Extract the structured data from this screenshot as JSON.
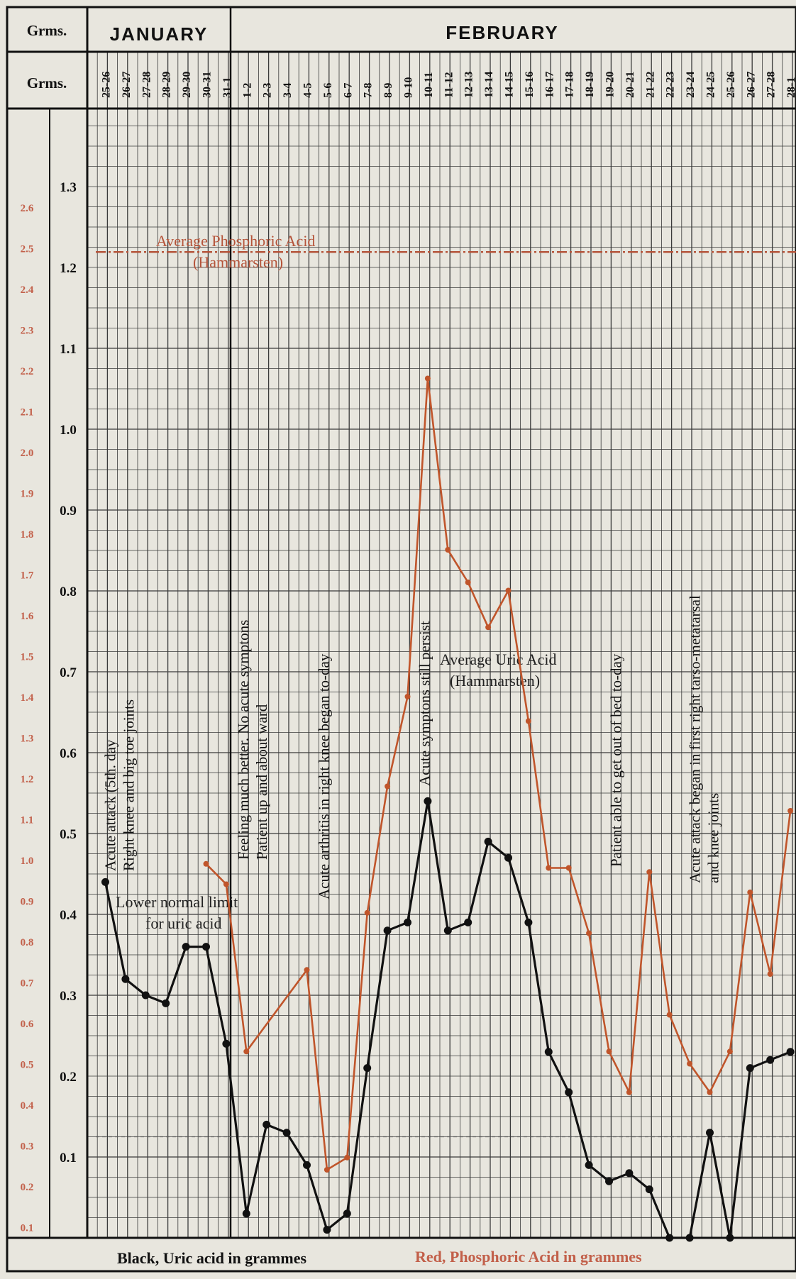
{
  "header": {
    "corner_label": "Grms.",
    "left_axis_header": "Grms.",
    "months": [
      {
        "name": "JANUARY"
      },
      {
        "name": "FEBRUARY"
      }
    ]
  },
  "footer": {
    "black_legend": "Black, Uric acid in grammes",
    "red_legend": "Red, Phosphoric Acid in grammes"
  },
  "chart_data": {
    "type": "line",
    "categories": [
      "25-26",
      "26-27",
      "27-28",
      "28-29",
      "29-30",
      "30-31",
      "31-1",
      "1-2",
      "2-3",
      "3-4",
      "4-5",
      "5-6",
      "6-7",
      "7-8",
      "8-9",
      "9-10",
      "10-11",
      "11-12",
      "12-13",
      "13-14",
      "14-15",
      "15-16",
      "16-17",
      "17-18",
      "18-19",
      "19-20",
      "20-21",
      "21-22",
      "22-23",
      "23-24",
      "24-25",
      "25-26",
      "26-27",
      "27-28",
      "28-1"
    ],
    "ylim": [
      0,
      1.38
    ],
    "uric_axis": {
      "ticks": [
        0.1,
        0.2,
        0.3,
        0.4,
        0.5,
        0.6,
        0.7,
        0.8,
        0.9,
        1.0,
        1.1,
        1.2,
        1.3
      ],
      "tick_labels": [
        "0.1",
        "0.2",
        "0.3",
        "0.4",
        "0.5",
        "0.6",
        "0.7",
        "0.8",
        "0.9",
        "1.0",
        "1.1",
        "1.2",
        "1.3"
      ]
    },
    "phosphoric_axis": {
      "ticks": [
        0.1,
        0.2,
        0.3,
        0.4,
        0.5,
        0.6,
        0.7,
        0.8,
        0.9,
        1.0,
        1.1,
        1.2,
        1.3,
        1.4,
        1.5,
        1.6,
        1.7,
        1.8,
        1.9,
        2.0,
        2.1,
        2.2,
        2.3,
        2.4,
        2.5,
        2.6
      ],
      "tick_labels": [
        "0.1",
        "0.2",
        "0.3",
        "0.4",
        "0.5",
        "0.6",
        "0.7",
        "0.8",
        "0.9",
        "1.0",
        "1.1",
        "1.2",
        "1.3",
        "1.4",
        "1.5",
        "1.6",
        "1.7",
        "1.8",
        "1.9",
        "2.0",
        "2.1",
        "2.2",
        "2.3",
        "2.4",
        "2.5",
        "2.6"
      ]
    },
    "series": [
      {
        "name": "Black, Uric acid in grammes",
        "color": "#111111",
        "axis": "uric",
        "values": [
          0.44,
          0.32,
          0.3,
          0.29,
          0.36,
          0.36,
          0.24,
          0.03,
          0.14,
          0.13,
          0.09,
          0.01,
          0.03,
          0.21,
          0.38,
          0.39,
          0.54,
          0.38,
          0.39,
          0.49,
          0.47,
          0.39,
          0.23,
          0.18,
          0.09,
          0.07,
          0.08,
          0.06,
          0.0,
          0.0,
          0.13,
          0.0,
          0.21,
          0.22,
          0.23
        ]
      },
      {
        "name": "Red, Phosphoric Acid in grammes",
        "color": "#c0552b",
        "axis": "phosphoric",
        "points": [
          [
            5,
            0.99
          ],
          [
            6,
            0.94
          ],
          [
            7,
            0.53
          ],
          [
            10,
            0.73
          ],
          [
            11,
            0.24
          ],
          [
            12,
            0.27
          ],
          [
            13,
            0.87
          ],
          [
            14,
            1.18
          ],
          [
            15,
            1.4
          ],
          [
            16,
            2.18
          ],
          [
            17,
            1.76
          ],
          [
            18,
            1.68
          ],
          [
            19,
            1.57
          ],
          [
            20,
            1.66
          ],
          [
            21,
            1.34
          ],
          [
            22,
            0.98
          ],
          [
            23,
            0.98
          ],
          [
            24,
            0.82
          ],
          [
            25,
            0.53
          ],
          [
            26,
            0.43
          ],
          [
            27,
            0.97
          ],
          [
            28,
            0.62
          ],
          [
            29,
            0.5
          ],
          [
            30,
            0.43
          ],
          [
            31,
            0.53
          ],
          [
            32,
            0.92
          ],
          [
            33,
            0.72
          ],
          [
            34,
            1.12
          ]
        ]
      }
    ],
    "reference_lines": [
      {
        "name": "phosphoric-average",
        "axis": "phosphoric",
        "value": 2.49,
        "color": "#b5543a",
        "label": "Average Phosphoric Acid",
        "sublabel": "(Hammarsten)"
      },
      {
        "name": "uric-average",
        "axis": "uric",
        "value": 0.7,
        "color": "#555555",
        "label": "Average Uric Acid",
        "sublabel": "(Hammarsten)"
      },
      {
        "name": "uric-lower-limit",
        "axis": "uric",
        "value": 0.4,
        "color": "#555555",
        "label": "Lower normal limit",
        "sublabel": "for uric acid"
      },
      {
        "name": "lower-dashed",
        "axis": "uric",
        "value": 0.125,
        "color": "#555555",
        "label": "",
        "sublabel": ""
      }
    ],
    "annotations": [
      {
        "col": 0.5,
        "lines": [
          "Acute attack (5th. day",
          "Right knee and big toe joints"
        ]
      },
      {
        "col": 7.1,
        "lines": [
          "Feeling much better. No acute symptons",
          "Patient up and about ward"
        ]
      },
      {
        "col": 11.1,
        "lines": [
          "Acute arthritis in right knee began to-day"
        ]
      },
      {
        "col": 16.1,
        "lines": [
          "Acute symptons still persist"
        ]
      },
      {
        "col": 25.6,
        "lines": [
          "Patient able to get out of bed to-day"
        ]
      },
      {
        "col": 29.5,
        "lines": [
          "Acute attack began in first right tarso-metatarsal",
          "and knee joints"
        ]
      }
    ],
    "grid": true
  }
}
